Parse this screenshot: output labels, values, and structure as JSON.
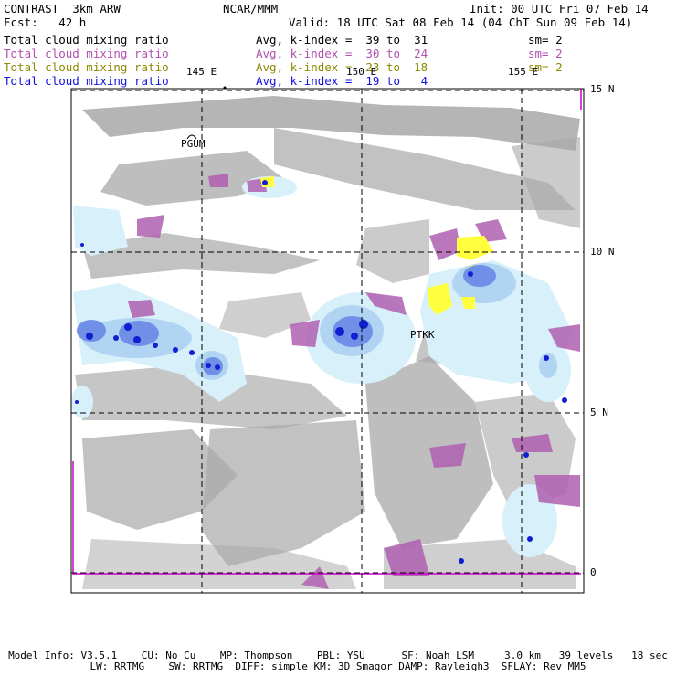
{
  "header": {
    "product": "CONTRAST  3km ARW",
    "center": "NCAR/MMM",
    "init": "Init: 00 UTC Fri 07 Feb 14",
    "fcst": "Fcst:   42 h",
    "valid": "Valid: 18 UTC Sat 08 Feb 14 (04 ChT Sun 09 Feb 14)"
  },
  "fields": [
    {
      "name": "Total cloud mixing ratio",
      "avg": "Avg, k-index =  39 to  31",
      "sm": "sm= 2",
      "color": "#000000"
    },
    {
      "name": "Total cloud mixing ratio",
      "avg": "Avg, k-index =  30 to  24",
      "sm": "sm= 2",
      "color": "#b050b0"
    },
    {
      "name": "Total cloud mixing ratio",
      "avg": "Avg, k-index =  23 to  18",
      "sm": "sm= 2",
      "color": "#8a8a00"
    },
    {
      "name": "Total cloud mixing ratio",
      "avg": "Avg, k-index =  19 to   4",
      "sm": "",
      "color": "#1010e0"
    }
  ],
  "map": {
    "lon_labels": [
      "145 E",
      "150 E",
      "155 E"
    ],
    "lat_labels": [
      "15 N",
      "10 N",
      "5 N",
      "0"
    ],
    "stations": [
      "PGUM",
      "PTKK"
    ],
    "colors": {
      "gray": "#a0a0a0",
      "purple": "#b060b0",
      "yellow": "#ffff40",
      "lightblue": "#d8f0fa",
      "midblue": "#b0d8f4",
      "blue": "#7090e8",
      "darkblue": "#1020d0",
      "magenta": "#d000d0"
    }
  },
  "footer": {
    "line1": "Model Info: V3.5.1    CU: No Cu    MP: Thompson    PBL: YSU      SF: Noah LSM     3.0 km   39 levels   18 sec",
    "line2": "LW: RRTMG    SW: RRTMG  DIFF: simple KM: 3D Smagor DAMP: Rayleigh3  SFLAY: Rev MM5"
  }
}
